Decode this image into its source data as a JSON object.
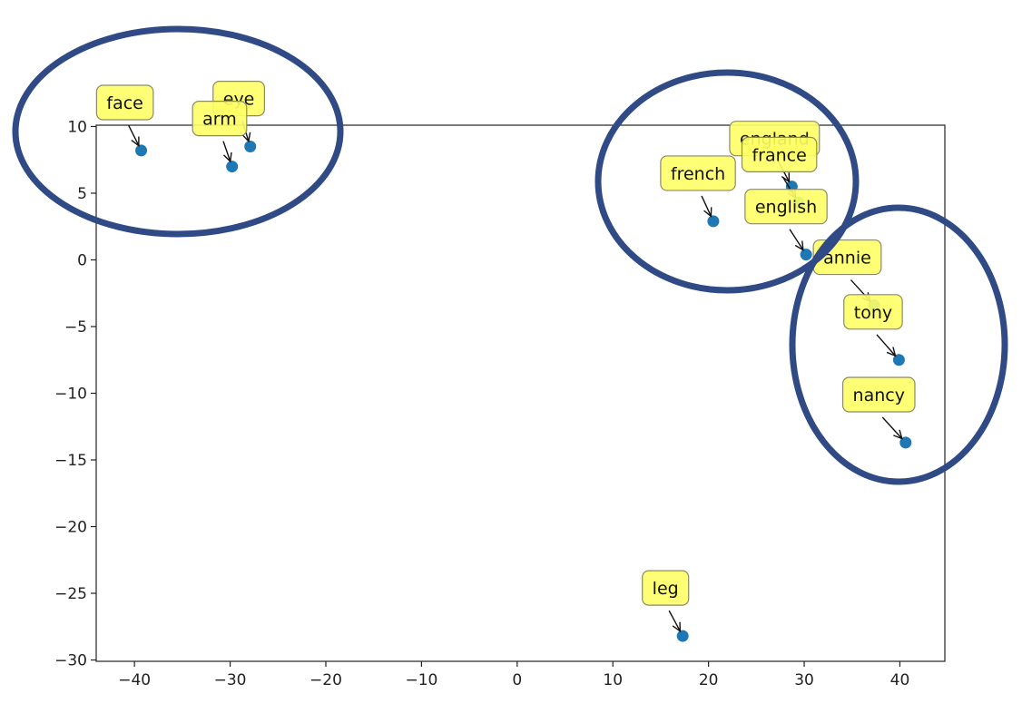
{
  "chart_data": {
    "type": "scatter",
    "title": "",
    "xlabel": "",
    "ylabel": "",
    "xlim": [
      -44,
      44.7
    ],
    "ylim": [
      -30.1,
      10.1
    ],
    "xticks": [
      -40,
      -30,
      -20,
      -10,
      0,
      10,
      20,
      30,
      40
    ],
    "yticks": [
      10,
      5,
      0,
      -5,
      -10,
      -15,
      -20,
      -25,
      -30
    ],
    "xtick_labels": [
      "−40",
      "−30",
      "−20",
      "−10",
      "0",
      "10",
      "20",
      "30",
      "40"
    ],
    "ytick_labels": [
      "10",
      "5",
      "0",
      "−5",
      "−10",
      "−15",
      "−20",
      "−25",
      "−30"
    ],
    "grid": false,
    "point_color": "#1f77b4",
    "annotation_box_color": "#ffff66",
    "cluster_outline_color": "#2f4a85",
    "points": [
      {
        "label": "face",
        "x": -39.3,
        "y": 8.2
      },
      {
        "label": "eye",
        "x": -27.9,
        "y": 8.5
      },
      {
        "label": "arm",
        "x": -29.8,
        "y": 7.0
      },
      {
        "label": "england",
        "x": 28.7,
        "y": 5.5
      },
      {
        "label": "france",
        "x": 29.4,
        "y": 4.3
      },
      {
        "label": "french",
        "x": 20.5,
        "y": 2.9
      },
      {
        "label": "english",
        "x": 30.2,
        "y": 0.4
      },
      {
        "label": "annie",
        "x": 37.3,
        "y": -3.4
      },
      {
        "label": "tony",
        "x": 39.9,
        "y": -7.5
      },
      {
        "label": "nancy",
        "x": 40.6,
        "y": -13.7
      },
      {
        "label": "leg",
        "x": 17.3,
        "y": -28.2
      }
    ],
    "annotations": [
      {
        "text": "face",
        "x": -41.0,
        "y": 11.8
      },
      {
        "text": "eye",
        "x": -29.1,
        "y": 12.1
      },
      {
        "text": "arm",
        "x": -31.1,
        "y": 10.6
      },
      {
        "text": "england",
        "x": 26.9,
        "y": 9.1
      },
      {
        "text": "france",
        "x": 27.4,
        "y": 7.9
      },
      {
        "text": "french",
        "x": 18.9,
        "y": 6.5
      },
      {
        "text": "english",
        "x": 28.1,
        "y": 4.0
      },
      {
        "text": "annie",
        "x": 34.5,
        "y": 0.2
      },
      {
        "text": "tony",
        "x": 37.2,
        "y": -3.9
      },
      {
        "text": "nancy",
        "x": 37.8,
        "y": -10.1
      },
      {
        "text": "leg",
        "x": 15.5,
        "y": -24.6
      }
    ]
  }
}
